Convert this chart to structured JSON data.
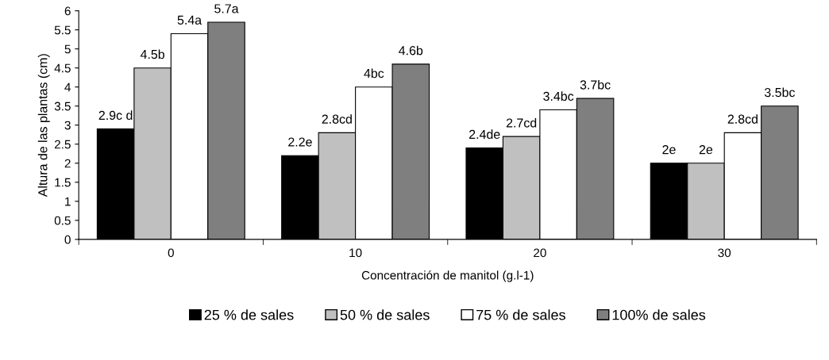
{
  "chart_data": {
    "type": "bar",
    "xlabel": "Concentración de manitol (g.l-1)",
    "ylabel": "Altura de las plantas (cm)",
    "categories": [
      "0",
      "10",
      "20",
      "30"
    ],
    "series": [
      {
        "name": "25 % de sales",
        "color": "#000000",
        "values": [
          2.9,
          2.2,
          2.4,
          2
        ],
        "value_labels": [
          "2.9c d",
          "2.2e",
          "2.4de",
          "2e"
        ]
      },
      {
        "name": "50 % de sales",
        "color": "#c0c0c0",
        "values": [
          4.5,
          2.8,
          2.7,
          2
        ],
        "value_labels": [
          "4.5b",
          "2.8cd",
          "2.7cd",
          "2e"
        ]
      },
      {
        "name": "75 % de sales",
        "color": "#ffffff",
        "values": [
          5.4,
          4,
          3.4,
          2.8
        ],
        "value_labels": [
          "5.4a",
          "4bc",
          "3.4bc",
          "2.8cd"
        ]
      },
      {
        "name": "100% de sales",
        "color": "#7f7f7f",
        "values": [
          5.7,
          4.6,
          3.7,
          3.5
        ],
        "value_labels": [
          "5.7a",
          "4.6b",
          "3.7bc",
          "3.5bc"
        ]
      }
    ],
    "ylim": [
      0,
      6
    ],
    "yticks": [
      0,
      0.5,
      1,
      1.5,
      2,
      2.5,
      3,
      3.5,
      4,
      4.5,
      5,
      5.5,
      6
    ],
    "grid": false,
    "legend": "bottom"
  }
}
